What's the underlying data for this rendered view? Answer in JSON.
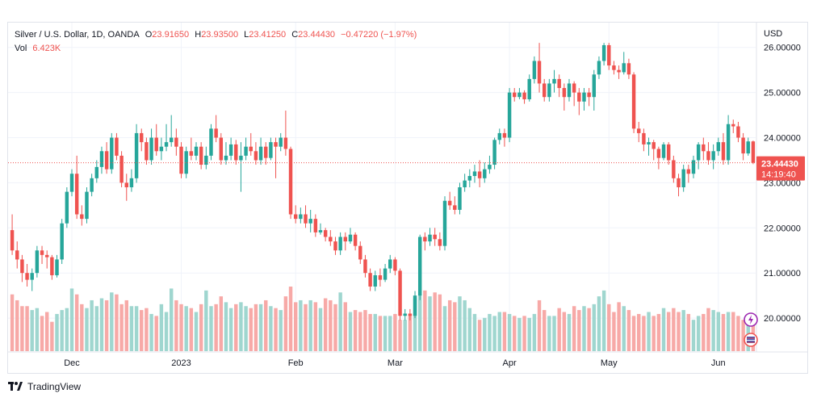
{
  "header": {
    "symbol": "Silver / U.S. Dollar, 1D, OANDA",
    "o_label": "O",
    "o_value": "23.91650",
    "h_label": "H",
    "h_value": "23.93500",
    "l_label": "L",
    "l_value": "23.41250",
    "c_label": "C",
    "c_value": "23.44430",
    "change": "−0.47220 (−1.97%)",
    "vol_label": "Vol",
    "vol_value": "6.423K"
  },
  "price_axis": {
    "currency": "USD",
    "last_price": "23.44430",
    "countdown": "14:19:40"
  },
  "colors": {
    "up": "#26a69a",
    "down": "#ef5350",
    "up_volume": "#9fd6cf",
    "down_volume": "#f7a9a7",
    "grid": "#f0f3fa",
    "axis_text": "#131722"
  },
  "footer": {
    "brand": "TradingView",
    "logo_icon": "tradingview-logo-icon"
  },
  "side_icons": [
    "alert-icon",
    "flag-icon"
  ],
  "chart_data": {
    "type": "candlestick",
    "title": "Silver / U.S. Dollar, 1D, OANDA",
    "y_ticks": [
      "26.00000",
      "25.00000",
      "24.00000",
      "23.00000",
      "22.00000",
      "21.00000",
      "20.00000"
    ],
    "ylim": [
      19.25,
      26.55
    ],
    "x_ticks": [
      {
        "label": "Dec",
        "index": 12
      },
      {
        "label": "2023",
        "index": 34
      },
      {
        "label": "Feb",
        "index": 57
      },
      {
        "label": "Mar",
        "index": 77
      },
      {
        "label": "Apr",
        "index": 100
      },
      {
        "label": "May",
        "index": 120
      },
      {
        "label": "Jun",
        "index": 142
      }
    ],
    "last_price": 23.4443,
    "candles": [
      [
        21.95,
        21.5,
        22.3,
        21.4
      ],
      [
        21.5,
        21.3,
        21.7,
        21.1
      ],
      [
        21.3,
        21.0,
        21.4,
        20.8
      ],
      [
        21.0,
        20.85,
        21.2,
        20.7
      ],
      [
        20.85,
        21.0,
        21.1,
        20.6
      ],
      [
        21.0,
        21.5,
        21.6,
        20.9
      ],
      [
        21.5,
        21.4,
        21.6,
        21.2
      ],
      [
        21.4,
        21.35,
        21.5,
        21.1
      ],
      [
        21.35,
        20.95,
        21.4,
        20.85
      ],
      [
        20.95,
        21.3,
        21.4,
        20.9
      ],
      [
        21.3,
        22.1,
        22.2,
        21.2
      ],
      [
        22.1,
        22.8,
        22.9,
        22.0
      ],
      [
        22.8,
        23.2,
        23.3,
        22.7
      ],
      [
        23.2,
        22.3,
        23.6,
        22.2
      ],
      [
        22.3,
        22.2,
        22.5,
        22.05
      ],
      [
        22.2,
        22.8,
        22.9,
        22.1
      ],
      [
        22.8,
        23.1,
        23.2,
        22.7
      ],
      [
        23.1,
        23.35,
        23.5,
        23.0
      ],
      [
        23.35,
        23.7,
        23.8,
        23.2
      ],
      [
        23.7,
        23.3,
        23.9,
        23.2
      ],
      [
        23.3,
        24.0,
        24.1,
        23.2
      ],
      [
        24.0,
        23.6,
        24.1,
        23.5
      ],
      [
        23.6,
        23.0,
        23.7,
        22.9
      ],
      [
        23.0,
        22.9,
        23.2,
        22.6
      ],
      [
        22.9,
        23.1,
        23.3,
        22.8
      ],
      [
        23.1,
        24.1,
        24.3,
        23.0
      ],
      [
        24.1,
        23.9,
        24.2,
        23.7
      ],
      [
        23.9,
        23.5,
        24.0,
        23.4
      ],
      [
        23.5,
        24.0,
        24.2,
        23.4
      ],
      [
        24.0,
        23.7,
        24.3,
        23.6
      ],
      [
        23.7,
        23.8,
        24.0,
        23.5
      ],
      [
        23.8,
        23.9,
        24.3,
        23.7
      ],
      [
        23.9,
        24.0,
        24.5,
        23.8
      ],
      [
        24.0,
        23.8,
        24.2,
        23.6
      ],
      [
        23.8,
        23.2,
        23.9,
        23.1
      ],
      [
        23.2,
        23.7,
        23.8,
        23.1
      ],
      [
        23.7,
        23.6,
        24.0,
        23.5
      ],
      [
        23.6,
        23.8,
        23.9,
        23.5
      ],
      [
        23.8,
        23.4,
        23.9,
        23.3
      ],
      [
        23.4,
        23.6,
        23.8,
        23.3
      ],
      [
        23.6,
        24.2,
        24.3,
        23.5
      ],
      [
        24.2,
        24.0,
        24.5,
        23.9
      ],
      [
        24.0,
        23.5,
        24.1,
        23.4
      ],
      [
        23.5,
        23.6,
        23.9,
        23.4
      ],
      [
        23.6,
        23.85,
        24.0,
        23.5
      ],
      [
        23.85,
        23.5,
        23.95,
        23.4
      ],
      [
        23.5,
        23.6,
        23.9,
        22.8
      ],
      [
        23.6,
        23.8,
        24.0,
        23.5
      ],
      [
        23.8,
        23.7,
        24.1,
        23.6
      ],
      [
        23.7,
        23.5,
        23.9,
        23.4
      ],
      [
        23.5,
        23.8,
        24.0,
        23.4
      ],
      [
        23.8,
        23.55,
        23.9,
        23.4
      ],
      [
        23.55,
        23.9,
        24.0,
        23.5
      ],
      [
        23.9,
        23.8,
        24.0,
        23.1
      ],
      [
        23.8,
        24.0,
        24.1,
        23.7
      ],
      [
        24.0,
        23.75,
        24.6,
        23.6
      ],
      [
        23.75,
        22.3,
        23.8,
        22.2
      ],
      [
        22.3,
        22.2,
        22.5,
        22.1
      ],
      [
        22.2,
        22.3,
        22.45,
        22.1
      ],
      [
        22.3,
        22.1,
        22.5,
        22.0
      ],
      [
        22.1,
        22.2,
        22.4,
        21.9
      ],
      [
        22.2,
        21.9,
        22.3,
        21.8
      ],
      [
        21.9,
        21.95,
        22.1,
        21.85
      ],
      [
        21.95,
        21.8,
        22.0,
        21.7
      ],
      [
        21.8,
        21.7,
        21.95,
        21.6
      ],
      [
        21.7,
        21.5,
        21.8,
        21.4
      ],
      [
        21.5,
        21.8,
        21.9,
        21.4
      ],
      [
        21.8,
        21.7,
        21.9,
        21.5
      ],
      [
        21.7,
        21.85,
        22.0,
        21.65
      ],
      [
        21.85,
        21.6,
        21.9,
        21.5
      ],
      [
        21.6,
        21.3,
        21.7,
        21.2
      ],
      [
        21.3,
        21.0,
        21.4,
        20.9
      ],
      [
        21.0,
        20.7,
        21.1,
        20.6
      ],
      [
        20.7,
        20.95,
        21.05,
        20.6
      ],
      [
        20.95,
        20.85,
        21.1,
        20.7
      ],
      [
        20.85,
        21.1,
        21.2,
        20.8
      ],
      [
        21.1,
        21.3,
        21.4,
        21.0
      ],
      [
        21.3,
        21.05,
        21.35,
        20.95
      ],
      [
        21.05,
        20.05,
        21.1,
        19.95
      ],
      [
        20.05,
        20.1,
        20.2,
        19.95
      ],
      [
        20.1,
        20.05,
        20.2,
        19.95
      ],
      [
        20.05,
        20.5,
        20.6,
        20.0
      ],
      [
        20.5,
        21.8,
        21.85,
        20.4
      ],
      [
        21.8,
        21.7,
        21.9,
        21.5
      ],
      [
        21.7,
        21.85,
        22.0,
        21.6
      ],
      [
        21.85,
        21.75,
        22.0,
        21.6
      ],
      [
        21.75,
        21.6,
        21.9,
        21.5
      ],
      [
        21.6,
        22.6,
        22.7,
        21.5
      ],
      [
        22.6,
        22.5,
        22.8,
        22.4
      ],
      [
        22.5,
        22.4,
        22.7,
        22.3
      ],
      [
        22.4,
        22.9,
        23.0,
        22.3
      ],
      [
        22.9,
        23.05,
        23.2,
        22.8
      ],
      [
        23.05,
        23.15,
        23.3,
        22.9
      ],
      [
        23.15,
        23.25,
        23.4,
        23.0
      ],
      [
        23.25,
        23.1,
        23.5,
        22.9
      ],
      [
        23.1,
        23.3,
        23.45,
        23.0
      ],
      [
        23.3,
        23.4,
        23.6,
        23.2
      ],
      [
        23.4,
        23.95,
        24.0,
        23.3
      ],
      [
        23.95,
        24.1,
        24.2,
        23.85
      ],
      [
        24.1,
        24.0,
        24.2,
        23.8
      ],
      [
        24.0,
        25.0,
        25.1,
        23.9
      ],
      [
        25.0,
        24.9,
        25.1,
        24.8
      ],
      [
        24.9,
        25.0,
        25.1,
        24.85
      ],
      [
        25.0,
        24.85,
        25.05,
        24.75
      ],
      [
        24.85,
        25.3,
        25.4,
        24.8
      ],
      [
        25.3,
        25.7,
        25.8,
        25.2
      ],
      [
        25.7,
        25.2,
        26.1,
        25.0
      ],
      [
        25.2,
        24.9,
        25.3,
        24.8
      ],
      [
        24.9,
        25.2,
        25.3,
        24.8
      ],
      [
        25.2,
        25.3,
        25.5,
        25.0
      ],
      [
        25.3,
        25.1,
        25.4,
        24.9
      ],
      [
        25.1,
        24.9,
        25.2,
        24.6
      ],
      [
        24.9,
        25.2,
        25.3,
        24.8
      ],
      [
        25.2,
        25.0,
        25.25,
        24.7
      ],
      [
        25.0,
        24.8,
        25.1,
        24.5
      ],
      [
        24.8,
        25.0,
        25.1,
        24.6
      ],
      [
        25.0,
        24.9,
        25.1,
        24.7
      ],
      [
        24.9,
        25.4,
        25.5,
        24.6
      ],
      [
        25.4,
        25.7,
        25.8,
        25.3
      ],
      [
        25.7,
        26.05,
        26.1,
        25.6
      ],
      [
        26.05,
        25.6,
        26.1,
        25.5
      ],
      [
        25.6,
        25.5,
        25.7,
        25.4
      ],
      [
        25.5,
        25.45,
        25.6,
        25.3
      ],
      [
        25.45,
        25.65,
        25.9,
        25.4
      ],
      [
        25.65,
        25.4,
        25.75,
        25.3
      ],
      [
        25.4,
        24.2,
        25.45,
        24.1
      ],
      [
        24.2,
        24.1,
        24.35,
        23.9
      ],
      [
        24.1,
        23.85,
        24.2,
        23.7
      ],
      [
        23.85,
        23.9,
        24.0,
        23.6
      ],
      [
        23.9,
        23.75,
        23.95,
        23.5
      ],
      [
        23.75,
        23.55,
        23.8,
        23.3
      ],
      [
        23.55,
        23.85,
        23.9,
        23.5
      ],
      [
        23.85,
        23.5,
        23.9,
        23.4
      ],
      [
        23.5,
        23.1,
        23.6,
        23.0
      ],
      [
        23.1,
        22.9,
        23.2,
        22.7
      ],
      [
        22.9,
        23.3,
        23.4,
        22.8
      ],
      [
        23.3,
        23.2,
        23.4,
        23.0
      ],
      [
        23.2,
        23.5,
        23.6,
        23.1
      ],
      [
        23.5,
        23.85,
        23.9,
        23.3
      ],
      [
        23.85,
        23.7,
        24.0,
        23.5
      ],
      [
        23.7,
        23.5,
        23.9,
        23.4
      ],
      [
        23.5,
        23.7,
        23.85,
        23.3
      ],
      [
        23.7,
        23.9,
        24.0,
        23.6
      ],
      [
        23.9,
        23.5,
        24.1,
        23.4
      ],
      [
        23.5,
        24.3,
        24.5,
        23.4
      ],
      [
        24.3,
        24.25,
        24.4,
        24.1
      ],
      [
        24.25,
        24.0,
        24.35,
        23.9
      ],
      [
        24.0,
        23.65,
        24.1,
        23.5
      ],
      [
        23.65,
        23.9165,
        24.0,
        23.6
      ],
      [
        23.9165,
        23.4443,
        23.935,
        23.4125
      ]
    ],
    "volumes": [
      2.9,
      2.6,
      2.3,
      2.3,
      2.1,
      2.2,
      1.8,
      2.0,
      1.5,
      1.9,
      2.1,
      2.2,
      3.2,
      2.9,
      2.4,
      2.2,
      2.6,
      2.3,
      2.7,
      2.6,
      3.0,
      2.9,
      2.4,
      2.6,
      2.3,
      2.3,
      2.1,
      2.2,
      1.9,
      1.8,
      2.4,
      2.0,
      3.2,
      2.6,
      2.4,
      2.3,
      2.2,
      2.0,
      2.4,
      3.1,
      2.3,
      2.4,
      2.8,
      2.5,
      2.2,
      2.4,
      2.5,
      2.3,
      2.2,
      2.4,
      2.4,
      2.6,
      2.3,
      2.2,
      2.1,
      2.8,
      3.3,
      2.5,
      2.6,
      2.4,
      2.6,
      2.5,
      2.2,
      2.7,
      2.6,
      2.4,
      3.0,
      2.5,
      2.0,
      2.1,
      2.0,
      2.1,
      1.9,
      1.9,
      1.8,
      1.8,
      1.8,
      1.9,
      1.6,
      1.6,
      1.9,
      2.7,
      2.9,
      3.1,
      2.8,
      3.0,
      2.9,
      2.3,
      2.6,
      2.5,
      2.8,
      2.6,
      2.2,
      1.9,
      1.6,
      1.7,
      1.9,
      1.8,
      2.0,
      2.0,
      1.9,
      1.8,
      1.7,
      1.8,
      1.7,
      1.9,
      2.6,
      2.1,
      1.8,
      1.8,
      2.2,
      2.0,
      1.9,
      2.3,
      2.1,
      2.3,
      2.2,
      2.4,
      2.8,
      3.1,
      2.4,
      2.0,
      2.5,
      2.3,
      2.1,
      1.8,
      1.9,
      1.8,
      2.0,
      1.8,
      1.9,
      2.2,
      2.0,
      2.2,
      2.0,
      2.1,
      1.9,
      1.6,
      1.8,
      1.9,
      2.2,
      2.1,
      2.0,
      1.9,
      2.0,
      2.0,
      1.8,
      1.6,
      1.7,
      1.9
    ]
  }
}
